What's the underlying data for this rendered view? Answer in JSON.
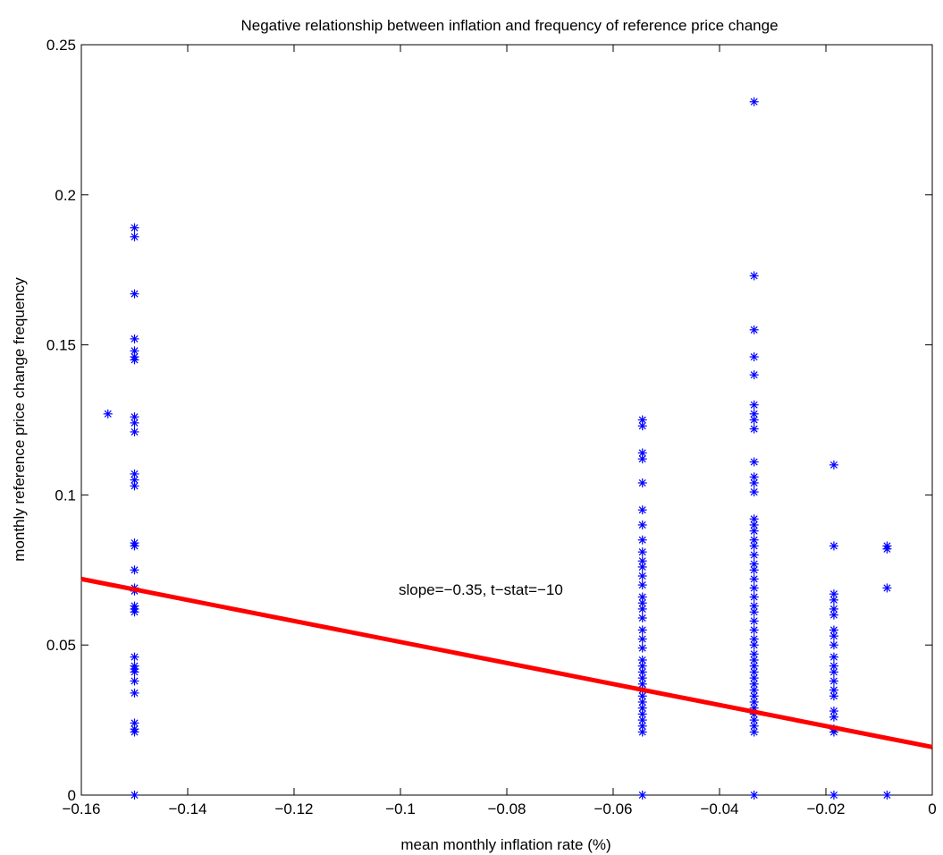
{
  "chart_data": {
    "type": "scatter",
    "title": "Negative relationship between inflation and frequency of reference price change",
    "xlabel": "mean monthly inflation rate (%)",
    "ylabel": "monthly reference price change frequency",
    "xlim": [
      -0.16,
      0
    ],
    "ylim": [
      0,
      0.25
    ],
    "x_ticks": [
      "−0.16",
      "−0.14",
      "−0.12",
      "−0.1",
      "−0.08",
      "−0.06",
      "−0.04",
      "−0.02",
      "0"
    ],
    "y_ticks": [
      "0",
      "0.05",
      "0.1",
      "0.15",
      "0.2",
      "0.25"
    ],
    "grid": false,
    "marker": "asterisk",
    "marker_color": "#0000ff",
    "fit_line_color": "#ff0000",
    "annotation": "slope=−0.35, t−stat=−10",
    "fit_line": {
      "x": [
        -0.16,
        0
      ],
      "y": [
        0.072,
        0.016
      ]
    },
    "points": [
      {
        "x": -0.155,
        "y": 0.127
      },
      {
        "x": -0.15,
        "y": 0.189
      },
      {
        "x": -0.15,
        "y": 0.186
      },
      {
        "x": -0.15,
        "y": 0.167
      },
      {
        "x": -0.15,
        "y": 0.152
      },
      {
        "x": -0.15,
        "y": 0.148
      },
      {
        "x": -0.15,
        "y": 0.146
      },
      {
        "x": -0.15,
        "y": 0.145
      },
      {
        "x": -0.15,
        "y": 0.126
      },
      {
        "x": -0.15,
        "y": 0.124
      },
      {
        "x": -0.15,
        "y": 0.121
      },
      {
        "x": -0.15,
        "y": 0.107
      },
      {
        "x": -0.15,
        "y": 0.105
      },
      {
        "x": -0.15,
        "y": 0.103
      },
      {
        "x": -0.15,
        "y": 0.084
      },
      {
        "x": -0.15,
        "y": 0.083
      },
      {
        "x": -0.15,
        "y": 0.075
      },
      {
        "x": -0.15,
        "y": 0.069
      },
      {
        "x": -0.15,
        "y": 0.068
      },
      {
        "x": -0.15,
        "y": 0.063
      },
      {
        "x": -0.15,
        "y": 0.062
      },
      {
        "x": -0.15,
        "y": 0.061
      },
      {
        "x": -0.15,
        "y": 0.046
      },
      {
        "x": -0.15,
        "y": 0.043
      },
      {
        "x": -0.15,
        "y": 0.042
      },
      {
        "x": -0.15,
        "y": 0.041
      },
      {
        "x": -0.15,
        "y": 0.038
      },
      {
        "x": -0.15,
        "y": 0.034
      },
      {
        "x": -0.15,
        "y": 0.024
      },
      {
        "x": -0.15,
        "y": 0.022
      },
      {
        "x": -0.15,
        "y": 0.021
      },
      {
        "x": -0.15,
        "y": 0.0
      },
      {
        "x": -0.0545,
        "y": 0.125
      },
      {
        "x": -0.0545,
        "y": 0.123
      },
      {
        "x": -0.0545,
        "y": 0.114
      },
      {
        "x": -0.0545,
        "y": 0.112
      },
      {
        "x": -0.0545,
        "y": 0.104
      },
      {
        "x": -0.0545,
        "y": 0.095
      },
      {
        "x": -0.0545,
        "y": 0.09
      },
      {
        "x": -0.0545,
        "y": 0.085
      },
      {
        "x": -0.0545,
        "y": 0.081
      },
      {
        "x": -0.0545,
        "y": 0.078
      },
      {
        "x": -0.0545,
        "y": 0.076
      },
      {
        "x": -0.0545,
        "y": 0.073
      },
      {
        "x": -0.0545,
        "y": 0.07
      },
      {
        "x": -0.0545,
        "y": 0.066
      },
      {
        "x": -0.0545,
        "y": 0.064
      },
      {
        "x": -0.0545,
        "y": 0.062
      },
      {
        "x": -0.0545,
        "y": 0.059
      },
      {
        "x": -0.0545,
        "y": 0.055
      },
      {
        "x": -0.0545,
        "y": 0.052
      },
      {
        "x": -0.0545,
        "y": 0.049
      },
      {
        "x": -0.0545,
        "y": 0.045
      },
      {
        "x": -0.0545,
        "y": 0.043
      },
      {
        "x": -0.0545,
        "y": 0.041
      },
      {
        "x": -0.0545,
        "y": 0.039
      },
      {
        "x": -0.0545,
        "y": 0.037
      },
      {
        "x": -0.0545,
        "y": 0.035
      },
      {
        "x": -0.0545,
        "y": 0.033
      },
      {
        "x": -0.0545,
        "y": 0.031
      },
      {
        "x": -0.0545,
        "y": 0.029
      },
      {
        "x": -0.0545,
        "y": 0.027
      },
      {
        "x": -0.0545,
        "y": 0.025
      },
      {
        "x": -0.0545,
        "y": 0.023
      },
      {
        "x": -0.0545,
        "y": 0.021
      },
      {
        "x": -0.0545,
        "y": 0.0
      },
      {
        "x": -0.0335,
        "y": 0.231
      },
      {
        "x": -0.0335,
        "y": 0.173
      },
      {
        "x": -0.0335,
        "y": 0.155
      },
      {
        "x": -0.0335,
        "y": 0.146
      },
      {
        "x": -0.0335,
        "y": 0.14
      },
      {
        "x": -0.0335,
        "y": 0.13
      },
      {
        "x": -0.0335,
        "y": 0.127
      },
      {
        "x": -0.0335,
        "y": 0.125
      },
      {
        "x": -0.0335,
        "y": 0.122
      },
      {
        "x": -0.0335,
        "y": 0.111
      },
      {
        "x": -0.0335,
        "y": 0.106
      },
      {
        "x": -0.0335,
        "y": 0.104
      },
      {
        "x": -0.0335,
        "y": 0.101
      },
      {
        "x": -0.0335,
        "y": 0.092
      },
      {
        "x": -0.0335,
        "y": 0.09
      },
      {
        "x": -0.0335,
        "y": 0.088
      },
      {
        "x": -0.0335,
        "y": 0.085
      },
      {
        "x": -0.0335,
        "y": 0.083
      },
      {
        "x": -0.0335,
        "y": 0.08
      },
      {
        "x": -0.0335,
        "y": 0.077
      },
      {
        "x": -0.0335,
        "y": 0.075
      },
      {
        "x": -0.0335,
        "y": 0.072
      },
      {
        "x": -0.0335,
        "y": 0.069
      },
      {
        "x": -0.0335,
        "y": 0.066
      },
      {
        "x": -0.0335,
        "y": 0.063
      },
      {
        "x": -0.0335,
        "y": 0.061
      },
      {
        "x": -0.0335,
        "y": 0.058
      },
      {
        "x": -0.0335,
        "y": 0.055
      },
      {
        "x": -0.0335,
        "y": 0.052
      },
      {
        "x": -0.0335,
        "y": 0.05
      },
      {
        "x": -0.0335,
        "y": 0.047
      },
      {
        "x": -0.0335,
        "y": 0.045
      },
      {
        "x": -0.0335,
        "y": 0.043
      },
      {
        "x": -0.0335,
        "y": 0.041
      },
      {
        "x": -0.0335,
        "y": 0.039
      },
      {
        "x": -0.0335,
        "y": 0.037
      },
      {
        "x": -0.0335,
        "y": 0.035
      },
      {
        "x": -0.0335,
        "y": 0.033
      },
      {
        "x": -0.0335,
        "y": 0.031
      },
      {
        "x": -0.0335,
        "y": 0.029
      },
      {
        "x": -0.0335,
        "y": 0.027
      },
      {
        "x": -0.0335,
        "y": 0.025
      },
      {
        "x": -0.0335,
        "y": 0.023
      },
      {
        "x": -0.0335,
        "y": 0.021
      },
      {
        "x": -0.0335,
        "y": 0.0
      },
      {
        "x": -0.0185,
        "y": 0.11
      },
      {
        "x": -0.0185,
        "y": 0.083
      },
      {
        "x": -0.0185,
        "y": 0.067
      },
      {
        "x": -0.0185,
        "y": 0.065
      },
      {
        "x": -0.0185,
        "y": 0.062
      },
      {
        "x": -0.0185,
        "y": 0.06
      },
      {
        "x": -0.0185,
        "y": 0.055
      },
      {
        "x": -0.0185,
        "y": 0.053
      },
      {
        "x": -0.0185,
        "y": 0.05
      },
      {
        "x": -0.0185,
        "y": 0.046
      },
      {
        "x": -0.0185,
        "y": 0.043
      },
      {
        "x": -0.0185,
        "y": 0.041
      },
      {
        "x": -0.0185,
        "y": 0.038
      },
      {
        "x": -0.0185,
        "y": 0.035
      },
      {
        "x": -0.0185,
        "y": 0.033
      },
      {
        "x": -0.0185,
        "y": 0.028
      },
      {
        "x": -0.0185,
        "y": 0.026
      },
      {
        "x": -0.0185,
        "y": 0.022
      },
      {
        "x": -0.0185,
        "y": 0.021
      },
      {
        "x": -0.0185,
        "y": 0.0
      },
      {
        "x": -0.0085,
        "y": 0.083
      },
      {
        "x": -0.0085,
        "y": 0.082
      },
      {
        "x": -0.0085,
        "y": 0.069
      },
      {
        "x": -0.0085,
        "y": 0.0
      }
    ]
  }
}
